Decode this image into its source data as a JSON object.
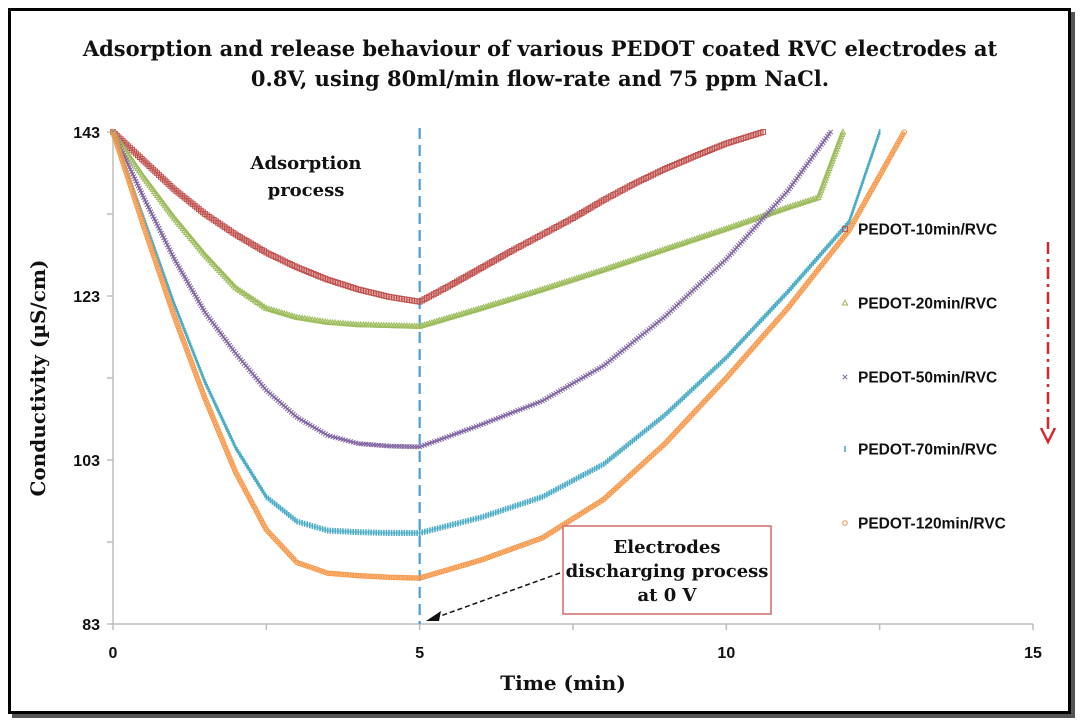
{
  "chart_data": {
    "type": "line",
    "title_lines": [
      "Adsorption and release behaviour of various PEDOT coated RVC electrodes at",
      "0.8V, using 80ml/min flow-rate and 75 ppm NaCl."
    ],
    "xlabel": "Time (min)",
    "ylabel": "Conductivity  (µS/cm)",
    "xlim": [
      0,
      15
    ],
    "ylim": [
      83,
      143
    ],
    "xticks": [
      0,
      5,
      10,
      15
    ],
    "yticks": [
      83,
      103,
      123,
      143
    ],
    "grid": "none",
    "legend_position": "right",
    "series": [
      {
        "name": "PEDOT-10min/RVC",
        "color": "#c0504d",
        "marker": "square",
        "x": [
          0,
          0.5,
          1,
          1.5,
          2,
          2.5,
          3,
          3.5,
          4,
          4.5,
          5,
          5.5,
          6,
          6.5,
          7,
          7.5,
          8,
          8.5,
          9,
          9.5,
          10,
          10.6
        ],
        "y": [
          143,
          139.5,
          136,
          133,
          130.5,
          128.3,
          126.5,
          125,
          123.8,
          122.9,
          122.3,
          124.3,
          126.4,
          128.5,
          130.5,
          132.5,
          134.7,
          136.7,
          138.5,
          140.1,
          141.6,
          143
        ]
      },
      {
        "name": "PEDOT-20min/RVC",
        "color": "#9bbb59",
        "marker": "triangle",
        "x": [
          0,
          0.5,
          1,
          1.5,
          2,
          2.5,
          3,
          3.5,
          4,
          4.5,
          5,
          6,
          7,
          8,
          9,
          10,
          11,
          11.5,
          11.9
        ],
        "y": [
          143,
          137.5,
          132.5,
          128,
          124,
          121.5,
          120.4,
          119.8,
          119.5,
          119.4,
          119.3,
          121.5,
          123.8,
          126.2,
          128.7,
          131.2,
          133.8,
          135,
          143
        ]
      },
      {
        "name": "PEDOT-50min/RVC",
        "color": "#8064a2",
        "marker": "x",
        "x": [
          0,
          0.5,
          1,
          1.5,
          2,
          2.5,
          3,
          3.5,
          4,
          4.5,
          5,
          6,
          7,
          8,
          9,
          10,
          11,
          11.7
        ],
        "y": [
          143,
          135,
          127.5,
          121,
          116,
          111.5,
          108.2,
          106,
          105,
          104.7,
          104.6,
          107.3,
          110.2,
          114.5,
          120.5,
          127.5,
          135.8,
          143
        ]
      },
      {
        "name": "PEDOT-70min/RVC",
        "color": "#4bacc6",
        "marker": "dash",
        "x": [
          0,
          0.5,
          1,
          1.5,
          2,
          2.5,
          3,
          3.5,
          4,
          4.5,
          5,
          6,
          7,
          8,
          9,
          10,
          11,
          12,
          12.5
        ],
        "y": [
          143,
          132.5,
          122,
          112.5,
          104.5,
          98.5,
          95.5,
          94.4,
          94.2,
          94.1,
          94.1,
          96,
          98.5,
          102.5,
          108.5,
          115.5,
          123.5,
          132,
          143
        ]
      },
      {
        "name": "PEDOT-120min/RVC",
        "color": "#f79646",
        "marker": "circle",
        "x": [
          0,
          0.5,
          1,
          1.5,
          2,
          2.5,
          3,
          3.5,
          4,
          4.5,
          5,
          6,
          7,
          8,
          9,
          10,
          11,
          12,
          12.9
        ],
        "y": [
          143,
          131.5,
          120.5,
          110.5,
          101.5,
          94.5,
          90.5,
          89.2,
          88.9,
          88.7,
          88.6,
          90.8,
          93.5,
          98.2,
          105,
          113,
          121.5,
          131,
          143
        ]
      }
    ],
    "vertical_marker_x": 5,
    "annotations": {
      "adsorption_lines": [
        "Adsorption",
        "process"
      ],
      "discharge_lines": [
        "Electrodes",
        "discharging process",
        "at 0 V"
      ]
    }
  }
}
